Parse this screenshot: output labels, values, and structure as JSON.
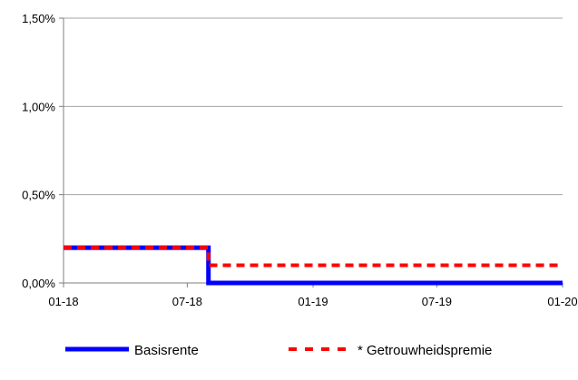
{
  "chart_data": {
    "type": "line",
    "title": "",
    "xlabel": "",
    "ylabel": "",
    "x_ticks": [
      "01-18",
      "07-18",
      "01-19",
      "07-19",
      "01-20"
    ],
    "x_tick_values": [
      "2018-01-01",
      "2018-07-01",
      "2019-01-01",
      "2019-07-01",
      "2020-01-01"
    ],
    "xlim": [
      "2018-01-01",
      "2020-01-01"
    ],
    "y_ticks": [
      "0,00%",
      "0,50%",
      "1,00%",
      "1,50%"
    ],
    "y_tick_values": [
      0.0,
      0.5,
      1.0,
      1.5
    ],
    "ylim": [
      0,
      1.5
    ],
    "y_unit": "%",
    "grid": "horizontal",
    "legend_position": "bottom",
    "step": true,
    "series": [
      {
        "name": "Basisrente",
        "color": "#0000ff",
        "style": "solid",
        "x": [
          "2018-01-01",
          "2018-08-01",
          "2018-08-01",
          "2020-01-01"
        ],
        "y": [
          0.2,
          0.2,
          0.0,
          0.0
        ]
      },
      {
        "name": "* Getrouwheidspremie",
        "color": "#ff0000",
        "style": "dashed",
        "x": [
          "2018-01-01",
          "2018-08-01",
          "2018-08-01",
          "2020-01-01"
        ],
        "y": [
          0.2,
          0.2,
          0.1,
          0.1
        ]
      }
    ]
  }
}
